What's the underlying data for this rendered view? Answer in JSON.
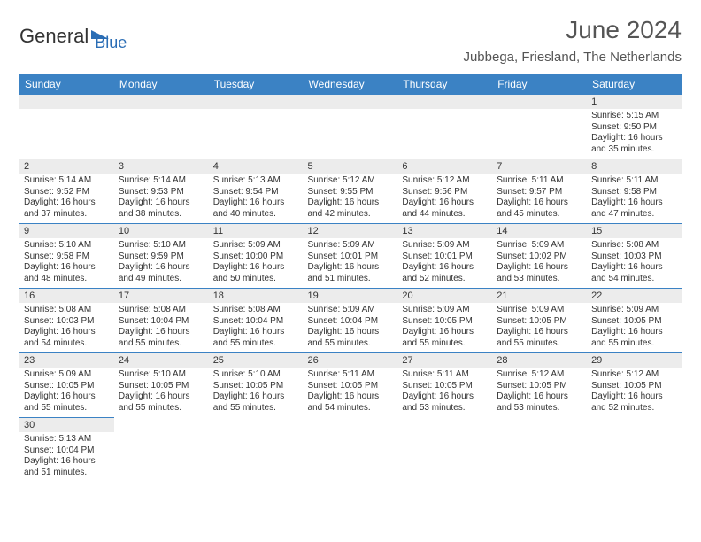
{
  "logo": {
    "general": "General",
    "blue": "Blue"
  },
  "title": "June 2024",
  "location": "Jubbega, Friesland, The Netherlands",
  "day_headers": [
    "Sunday",
    "Monday",
    "Tuesday",
    "Wednesday",
    "Thursday",
    "Friday",
    "Saturday"
  ],
  "colors": {
    "header_bg": "#3b82c4",
    "header_text": "#ffffff",
    "daynum_bg": "#ececec",
    "border": "#3b82c4",
    "text": "#333333",
    "logo_blue": "#2a6db5"
  },
  "weeks": [
    [
      null,
      null,
      null,
      null,
      null,
      null,
      {
        "n": "1",
        "sr": "Sunrise: 5:15 AM",
        "ss": "Sunset: 9:50 PM",
        "d1": "Daylight: 16 hours",
        "d2": "and 35 minutes."
      }
    ],
    [
      {
        "n": "2",
        "sr": "Sunrise: 5:14 AM",
        "ss": "Sunset: 9:52 PM",
        "d1": "Daylight: 16 hours",
        "d2": "and 37 minutes."
      },
      {
        "n": "3",
        "sr": "Sunrise: 5:14 AM",
        "ss": "Sunset: 9:53 PM",
        "d1": "Daylight: 16 hours",
        "d2": "and 38 minutes."
      },
      {
        "n": "4",
        "sr": "Sunrise: 5:13 AM",
        "ss": "Sunset: 9:54 PM",
        "d1": "Daylight: 16 hours",
        "d2": "and 40 minutes."
      },
      {
        "n": "5",
        "sr": "Sunrise: 5:12 AM",
        "ss": "Sunset: 9:55 PM",
        "d1": "Daylight: 16 hours",
        "d2": "and 42 minutes."
      },
      {
        "n": "6",
        "sr": "Sunrise: 5:12 AM",
        "ss": "Sunset: 9:56 PM",
        "d1": "Daylight: 16 hours",
        "d2": "and 44 minutes."
      },
      {
        "n": "7",
        "sr": "Sunrise: 5:11 AM",
        "ss": "Sunset: 9:57 PM",
        "d1": "Daylight: 16 hours",
        "d2": "and 45 minutes."
      },
      {
        "n": "8",
        "sr": "Sunrise: 5:11 AM",
        "ss": "Sunset: 9:58 PM",
        "d1": "Daylight: 16 hours",
        "d2": "and 47 minutes."
      }
    ],
    [
      {
        "n": "9",
        "sr": "Sunrise: 5:10 AM",
        "ss": "Sunset: 9:58 PM",
        "d1": "Daylight: 16 hours",
        "d2": "and 48 minutes."
      },
      {
        "n": "10",
        "sr": "Sunrise: 5:10 AM",
        "ss": "Sunset: 9:59 PM",
        "d1": "Daylight: 16 hours",
        "d2": "and 49 minutes."
      },
      {
        "n": "11",
        "sr": "Sunrise: 5:09 AM",
        "ss": "Sunset: 10:00 PM",
        "d1": "Daylight: 16 hours",
        "d2": "and 50 minutes."
      },
      {
        "n": "12",
        "sr": "Sunrise: 5:09 AM",
        "ss": "Sunset: 10:01 PM",
        "d1": "Daylight: 16 hours",
        "d2": "and 51 minutes."
      },
      {
        "n": "13",
        "sr": "Sunrise: 5:09 AM",
        "ss": "Sunset: 10:01 PM",
        "d1": "Daylight: 16 hours",
        "d2": "and 52 minutes."
      },
      {
        "n": "14",
        "sr": "Sunrise: 5:09 AM",
        "ss": "Sunset: 10:02 PM",
        "d1": "Daylight: 16 hours",
        "d2": "and 53 minutes."
      },
      {
        "n": "15",
        "sr": "Sunrise: 5:08 AM",
        "ss": "Sunset: 10:03 PM",
        "d1": "Daylight: 16 hours",
        "d2": "and 54 minutes."
      }
    ],
    [
      {
        "n": "16",
        "sr": "Sunrise: 5:08 AM",
        "ss": "Sunset: 10:03 PM",
        "d1": "Daylight: 16 hours",
        "d2": "and 54 minutes."
      },
      {
        "n": "17",
        "sr": "Sunrise: 5:08 AM",
        "ss": "Sunset: 10:04 PM",
        "d1": "Daylight: 16 hours",
        "d2": "and 55 minutes."
      },
      {
        "n": "18",
        "sr": "Sunrise: 5:08 AM",
        "ss": "Sunset: 10:04 PM",
        "d1": "Daylight: 16 hours",
        "d2": "and 55 minutes."
      },
      {
        "n": "19",
        "sr": "Sunrise: 5:09 AM",
        "ss": "Sunset: 10:04 PM",
        "d1": "Daylight: 16 hours",
        "d2": "and 55 minutes."
      },
      {
        "n": "20",
        "sr": "Sunrise: 5:09 AM",
        "ss": "Sunset: 10:05 PM",
        "d1": "Daylight: 16 hours",
        "d2": "and 55 minutes."
      },
      {
        "n": "21",
        "sr": "Sunrise: 5:09 AM",
        "ss": "Sunset: 10:05 PM",
        "d1": "Daylight: 16 hours",
        "d2": "and 55 minutes."
      },
      {
        "n": "22",
        "sr": "Sunrise: 5:09 AM",
        "ss": "Sunset: 10:05 PM",
        "d1": "Daylight: 16 hours",
        "d2": "and 55 minutes."
      }
    ],
    [
      {
        "n": "23",
        "sr": "Sunrise: 5:09 AM",
        "ss": "Sunset: 10:05 PM",
        "d1": "Daylight: 16 hours",
        "d2": "and 55 minutes."
      },
      {
        "n": "24",
        "sr": "Sunrise: 5:10 AM",
        "ss": "Sunset: 10:05 PM",
        "d1": "Daylight: 16 hours",
        "d2": "and 55 minutes."
      },
      {
        "n": "25",
        "sr": "Sunrise: 5:10 AM",
        "ss": "Sunset: 10:05 PM",
        "d1": "Daylight: 16 hours",
        "d2": "and 55 minutes."
      },
      {
        "n": "26",
        "sr": "Sunrise: 5:11 AM",
        "ss": "Sunset: 10:05 PM",
        "d1": "Daylight: 16 hours",
        "d2": "and 54 minutes."
      },
      {
        "n": "27",
        "sr": "Sunrise: 5:11 AM",
        "ss": "Sunset: 10:05 PM",
        "d1": "Daylight: 16 hours",
        "d2": "and 53 minutes."
      },
      {
        "n": "28",
        "sr": "Sunrise: 5:12 AM",
        "ss": "Sunset: 10:05 PM",
        "d1": "Daylight: 16 hours",
        "d2": "and 53 minutes."
      },
      {
        "n": "29",
        "sr": "Sunrise: 5:12 AM",
        "ss": "Sunset: 10:05 PM",
        "d1": "Daylight: 16 hours",
        "d2": "and 52 minutes."
      }
    ],
    [
      {
        "n": "30",
        "sr": "Sunrise: 5:13 AM",
        "ss": "Sunset: 10:04 PM",
        "d1": "Daylight: 16 hours",
        "d2": "and 51 minutes."
      },
      null,
      null,
      null,
      null,
      null,
      null
    ]
  ]
}
